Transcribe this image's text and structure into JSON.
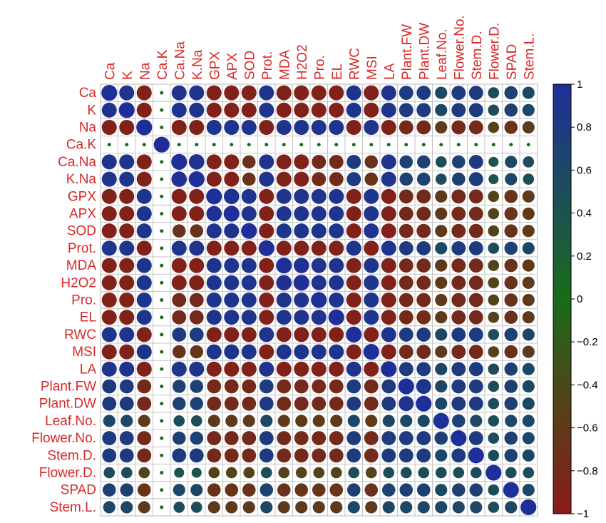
{
  "chart_data": {
    "type": "heatmap",
    "variables": [
      "Ca",
      "K",
      "Na",
      "Ca.K",
      "Ca.Na",
      "K.Na",
      "GPX",
      "APX",
      "SOD",
      "Prot.",
      "MDA",
      "H2O2",
      "Pro.",
      "EL",
      "RWC",
      "MSI",
      "LA",
      "Plant.FW",
      "Plant.DW",
      "Leaf.No.",
      "Flower.No.",
      "Stem.D.",
      "Flower.D.",
      "SPAD",
      "Stem.L."
    ],
    "matrix": [
      [
        1,
        0.9,
        -0.9,
        0.05,
        0.9,
        0.9,
        -0.9,
        -0.9,
        -0.9,
        0.9,
        -0.9,
        -0.9,
        -0.9,
        -0.9,
        0.9,
        -0.9,
        0.9,
        0.8,
        0.8,
        0.6,
        0.8,
        0.8,
        0.5,
        0.7,
        0.6
      ],
      [
        0.9,
        1,
        -0.9,
        0.05,
        0.9,
        0.9,
        -0.9,
        -0.9,
        -0.9,
        0.9,
        -0.9,
        -0.9,
        -0.9,
        -0.9,
        0.9,
        -0.9,
        0.9,
        0.8,
        0.8,
        0.6,
        0.8,
        0.8,
        0.5,
        0.7,
        0.6
      ],
      [
        -0.9,
        -0.9,
        1,
        0.05,
        -0.9,
        -0.9,
        0.9,
        0.9,
        0.9,
        -0.9,
        0.9,
        0.9,
        0.9,
        0.9,
        -0.9,
        0.9,
        -0.9,
        -0.8,
        -0.8,
        -0.6,
        -0.8,
        -0.8,
        -0.5,
        -0.7,
        -0.6
      ],
      [
        0.05,
        0.05,
        0.05,
        1,
        0.05,
        0.05,
        0.05,
        0.05,
        0.05,
        0.05,
        0.05,
        0.05,
        0.05,
        0.05,
        0.05,
        0.05,
        0.05,
        0.05,
        0.05,
        0.05,
        0.05,
        0.05,
        0.05,
        0.05,
        0.05
      ],
      [
        0.9,
        0.9,
        -0.9,
        0.05,
        1,
        0.95,
        -0.9,
        -0.9,
        -0.7,
        0.9,
        -0.9,
        -0.9,
        -0.8,
        -0.8,
        0.8,
        -0.7,
        0.9,
        0.7,
        0.7,
        0.5,
        0.7,
        0.8,
        0.4,
        0.6,
        0.5
      ],
      [
        0.9,
        0.9,
        -0.9,
        0.05,
        0.95,
        1,
        -0.9,
        -0.9,
        -0.7,
        0.9,
        -0.9,
        -0.9,
        -0.8,
        -0.8,
        0.8,
        -0.7,
        0.9,
        0.7,
        0.7,
        0.5,
        0.7,
        0.8,
        0.4,
        0.6,
        0.5
      ],
      [
        -0.9,
        -0.9,
        0.9,
        0.05,
        -0.9,
        -0.9,
        1,
        0.95,
        0.9,
        -0.9,
        0.9,
        0.9,
        0.9,
        0.9,
        -0.9,
        0.9,
        -0.9,
        -0.8,
        -0.8,
        -0.6,
        -0.8,
        -0.8,
        -0.5,
        -0.7,
        -0.6
      ],
      [
        -0.9,
        -0.9,
        0.9,
        0.05,
        -0.9,
        -0.9,
        0.95,
        1,
        0.9,
        -0.9,
        0.9,
        0.9,
        0.9,
        0.9,
        -0.9,
        0.9,
        -0.9,
        -0.8,
        -0.8,
        -0.6,
        -0.8,
        -0.8,
        -0.5,
        -0.7,
        -0.6
      ],
      [
        -0.9,
        -0.9,
        0.9,
        0.05,
        -0.7,
        -0.7,
        0.9,
        0.9,
        1,
        -0.9,
        0.9,
        0.9,
        0.9,
        0.9,
        -0.9,
        0.9,
        -0.9,
        -0.8,
        -0.8,
        -0.6,
        -0.8,
        -0.8,
        -0.5,
        -0.7,
        -0.6
      ],
      [
        0.9,
        0.9,
        -0.9,
        0.05,
        0.9,
        0.9,
        -0.9,
        -0.9,
        -0.9,
        1,
        -0.9,
        -0.9,
        -0.9,
        -0.9,
        0.9,
        -0.9,
        0.9,
        0.8,
        0.8,
        0.6,
        0.8,
        0.8,
        0.5,
        0.7,
        0.6
      ],
      [
        -0.9,
        -0.9,
        0.9,
        0.05,
        -0.9,
        -0.9,
        0.9,
        0.9,
        0.9,
        -0.9,
        1,
        0.95,
        0.9,
        0.9,
        -0.9,
        0.9,
        -0.9,
        -0.8,
        -0.8,
        -0.6,
        -0.8,
        -0.8,
        -0.5,
        -0.7,
        -0.6
      ],
      [
        -0.9,
        -0.9,
        0.9,
        0.05,
        -0.9,
        -0.9,
        0.9,
        0.9,
        0.9,
        -0.9,
        0.95,
        1,
        0.9,
        0.9,
        -0.9,
        0.9,
        -0.9,
        -0.8,
        -0.8,
        -0.6,
        -0.8,
        -0.8,
        -0.5,
        -0.7,
        -0.6
      ],
      [
        -0.9,
        -0.9,
        0.9,
        0.05,
        -0.8,
        -0.8,
        0.9,
        0.9,
        0.9,
        -0.9,
        0.9,
        0.9,
        1,
        0.9,
        -0.9,
        0.9,
        -0.9,
        -0.8,
        -0.8,
        -0.6,
        -0.8,
        -0.8,
        -0.5,
        -0.7,
        -0.6
      ],
      [
        -0.9,
        -0.9,
        0.9,
        0.05,
        -0.8,
        -0.8,
        0.9,
        0.9,
        0.9,
        -0.9,
        0.9,
        0.9,
        0.9,
        1,
        -0.9,
        0.9,
        -0.9,
        -0.8,
        -0.8,
        -0.6,
        -0.8,
        -0.8,
        -0.5,
        -0.7,
        -0.6
      ],
      [
        0.9,
        0.9,
        -0.9,
        0.05,
        0.8,
        0.8,
        -0.9,
        -0.9,
        -0.9,
        0.9,
        -0.9,
        -0.9,
        -0.9,
        -0.9,
        1,
        -0.9,
        0.9,
        0.8,
        0.8,
        0.6,
        0.8,
        0.8,
        0.5,
        0.7,
        0.6
      ],
      [
        -0.9,
        -0.9,
        0.9,
        0.05,
        -0.7,
        -0.7,
        0.9,
        0.9,
        0.9,
        -0.9,
        0.9,
        0.9,
        0.9,
        0.9,
        -0.9,
        1,
        -0.9,
        -0.8,
        -0.8,
        -0.6,
        -0.8,
        -0.8,
        -0.5,
        -0.7,
        -0.6
      ],
      [
        0.9,
        0.9,
        -0.9,
        0.05,
        0.9,
        0.9,
        -0.9,
        -0.9,
        -0.9,
        0.9,
        -0.9,
        -0.9,
        -0.9,
        -0.9,
        0.9,
        -0.9,
        1,
        0.8,
        0.8,
        0.6,
        0.8,
        0.8,
        0.5,
        0.7,
        0.6
      ],
      [
        0.8,
        0.8,
        -0.8,
        0.05,
        0.7,
        0.7,
        -0.8,
        -0.8,
        -0.8,
        0.8,
        -0.8,
        -0.8,
        -0.8,
        -0.8,
        0.8,
        -0.8,
        0.8,
        1,
        0.9,
        0.6,
        0.8,
        0.8,
        0.5,
        0.7,
        0.6
      ],
      [
        0.8,
        0.8,
        -0.8,
        0.05,
        0.7,
        0.7,
        -0.8,
        -0.8,
        -0.8,
        0.8,
        -0.8,
        -0.8,
        -0.8,
        -0.8,
        0.8,
        -0.8,
        0.8,
        0.9,
        1,
        0.6,
        0.8,
        0.8,
        0.5,
        0.7,
        0.6
      ],
      [
        0.6,
        0.6,
        -0.6,
        0.05,
        0.5,
        0.5,
        -0.6,
        -0.6,
        -0.6,
        0.6,
        -0.6,
        -0.6,
        -0.6,
        -0.6,
        0.6,
        -0.6,
        0.6,
        0.6,
        0.6,
        1,
        0.7,
        0.6,
        0.5,
        0.6,
        0.6
      ],
      [
        0.8,
        0.8,
        -0.8,
        0.05,
        0.7,
        0.7,
        -0.8,
        -0.8,
        -0.8,
        0.8,
        -0.8,
        -0.8,
        -0.8,
        -0.8,
        0.8,
        -0.8,
        0.8,
        0.8,
        0.8,
        0.7,
        1,
        0.8,
        0.5,
        0.7,
        0.6
      ],
      [
        0.8,
        0.8,
        -0.8,
        0.05,
        0.8,
        0.8,
        -0.8,
        -0.8,
        -0.8,
        0.8,
        -0.8,
        -0.8,
        -0.8,
        -0.8,
        0.8,
        -0.8,
        0.8,
        0.8,
        0.8,
        0.6,
        0.8,
        1,
        0.5,
        0.7,
        0.6
      ],
      [
        0.5,
        0.5,
        -0.5,
        0.05,
        0.4,
        0.4,
        -0.5,
        -0.5,
        -0.5,
        0.5,
        -0.5,
        -0.5,
        -0.5,
        -0.5,
        0.5,
        -0.5,
        0.5,
        0.5,
        0.5,
        0.5,
        0.5,
        0.5,
        1,
        0.5,
        0.5
      ],
      [
        0.7,
        0.7,
        -0.7,
        0.05,
        0.6,
        0.6,
        -0.7,
        -0.7,
        -0.7,
        0.7,
        -0.7,
        -0.7,
        -0.7,
        -0.7,
        0.7,
        -0.7,
        0.7,
        0.7,
        0.7,
        0.6,
        0.7,
        0.7,
        0.5,
        1,
        0.6
      ],
      [
        0.6,
        0.6,
        -0.6,
        0.05,
        0.5,
        0.5,
        -0.6,
        -0.6,
        -0.6,
        0.6,
        -0.6,
        -0.6,
        -0.6,
        -0.6,
        0.6,
        -0.6,
        0.6,
        0.6,
        0.6,
        0.6,
        0.6,
        0.6,
        0.5,
        0.6,
        1
      ]
    ],
    "colorbar": {
      "ticks": [
        "1",
        "0.8",
        "0.6",
        "0.4",
        "0.2",
        "0",
        "−0.2",
        "−0.4",
        "−0.6",
        "−0.8",
        "−1"
      ],
      "range": [
        -1,
        1
      ],
      "colors": {
        "negative": "#8b1a1a",
        "zero": "#1a6b1a",
        "positive": "#1f2f9a"
      }
    },
    "label_color": "#d52a2a",
    "grid": true
  }
}
